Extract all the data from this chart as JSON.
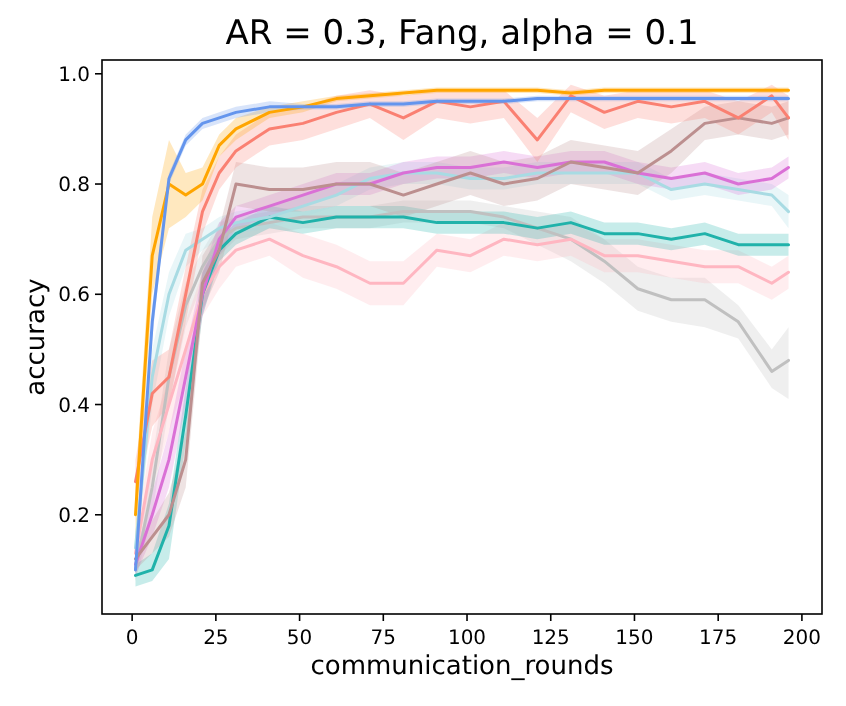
{
  "chart_data": {
    "type": "line",
    "title": "AR = 0.3, Fang, alpha = 0.1",
    "xlabel": "communication_rounds",
    "ylabel": "accuracy",
    "x": [
      1,
      6,
      11,
      16,
      21,
      26,
      31,
      41,
      51,
      61,
      71,
      81,
      91,
      101,
      111,
      121,
      131,
      141,
      151,
      161,
      171,
      181,
      191,
      196
    ],
    "xlim": [
      -9,
      206
    ],
    "xticks": [
      0,
      25,
      50,
      75,
      100,
      125,
      150,
      175,
      200
    ],
    "ylim": [
      0.02,
      1.025
    ],
    "yticks": [
      {
        "value": 0.2,
        "label": "0.2"
      },
      {
        "value": 0.4,
        "label": "0.4"
      },
      {
        "value": 0.6,
        "label": "0.6"
      },
      {
        "value": 0.8,
        "label": "0.8"
      },
      {
        "value": 1,
        "label": "1.0"
      }
    ],
    "grid": false,
    "line_style": "solid",
    "marker": "none",
    "series": [
      {
        "color": "#c0c0c0",
        "values": [
          0.1,
          0.25,
          0.45,
          0.58,
          0.65,
          0.7,
          0.72,
          0.73,
          0.74,
          0.74,
          0.74,
          0.75,
          0.75,
          0.75,
          0.74,
          0.72,
          0.7,
          0.66,
          0.61,
          0.59,
          0.59,
          0.55,
          0.46,
          0.48
        ],
        "lower": [
          0.08,
          0.2,
          0.4,
          0.54,
          0.62,
          0.67,
          0.7,
          0.71,
          0.72,
          0.72,
          0.72,
          0.73,
          0.73,
          0.73,
          0.72,
          0.69,
          0.66,
          0.62,
          0.57,
          0.55,
          0.54,
          0.52,
          0.43,
          0.41
        ],
        "upper": [
          0.12,
          0.3,
          0.5,
          0.62,
          0.68,
          0.73,
          0.74,
          0.75,
          0.76,
          0.76,
          0.76,
          0.77,
          0.77,
          0.77,
          0.76,
          0.75,
          0.74,
          0.7,
          0.65,
          0.63,
          0.63,
          0.58,
          0.5,
          0.54
        ]
      },
      {
        "color": "#ffb6c1",
        "values": [
          0.13,
          0.3,
          0.4,
          0.5,
          0.6,
          0.65,
          0.68,
          0.7,
          0.67,
          0.65,
          0.62,
          0.62,
          0.68,
          0.67,
          0.7,
          0.69,
          0.7,
          0.67,
          0.67,
          0.66,
          0.65,
          0.65,
          0.62,
          0.64
        ],
        "lower": [
          0.1,
          0.25,
          0.35,
          0.45,
          0.56,
          0.61,
          0.65,
          0.67,
          0.63,
          0.61,
          0.58,
          0.58,
          0.65,
          0.64,
          0.67,
          0.66,
          0.67,
          0.64,
          0.64,
          0.63,
          0.62,
          0.62,
          0.59,
          0.61
        ],
        "upper": [
          0.16,
          0.35,
          0.45,
          0.55,
          0.64,
          0.69,
          0.71,
          0.73,
          0.71,
          0.69,
          0.66,
          0.66,
          0.71,
          0.7,
          0.73,
          0.72,
          0.73,
          0.7,
          0.7,
          0.69,
          0.68,
          0.68,
          0.65,
          0.67
        ]
      },
      {
        "color": "#20b2aa",
        "values": [
          0.09,
          0.1,
          0.18,
          0.38,
          0.6,
          0.68,
          0.71,
          0.74,
          0.73,
          0.74,
          0.74,
          0.74,
          0.73,
          0.73,
          0.73,
          0.72,
          0.73,
          0.71,
          0.71,
          0.7,
          0.71,
          0.69,
          0.69,
          0.69
        ],
        "lower": [
          0.07,
          0.08,
          0.12,
          0.33,
          0.56,
          0.66,
          0.69,
          0.72,
          0.71,
          0.72,
          0.72,
          0.72,
          0.71,
          0.71,
          0.71,
          0.7,
          0.71,
          0.69,
          0.69,
          0.68,
          0.69,
          0.67,
          0.67,
          0.67
        ],
        "upper": [
          0.11,
          0.13,
          0.22,
          0.43,
          0.64,
          0.7,
          0.73,
          0.76,
          0.75,
          0.76,
          0.76,
          0.76,
          0.75,
          0.75,
          0.75,
          0.74,
          0.75,
          0.73,
          0.73,
          0.72,
          0.73,
          0.71,
          0.71,
          0.71
        ]
      },
      {
        "color": "#a8dbe3",
        "values": [
          0.14,
          0.45,
          0.6,
          0.68,
          0.7,
          0.72,
          0.73,
          0.74,
          0.76,
          0.78,
          0.81,
          0.82,
          0.82,
          0.81,
          0.81,
          0.82,
          0.82,
          0.82,
          0.82,
          0.79,
          0.8,
          0.79,
          0.78,
          0.75
        ],
        "lower": [
          0.11,
          0.4,
          0.56,
          0.65,
          0.68,
          0.7,
          0.71,
          0.72,
          0.74,
          0.76,
          0.79,
          0.8,
          0.8,
          0.79,
          0.79,
          0.8,
          0.8,
          0.8,
          0.8,
          0.77,
          0.78,
          0.77,
          0.76,
          0.72
        ],
        "upper": [
          0.17,
          0.5,
          0.64,
          0.71,
          0.72,
          0.74,
          0.75,
          0.76,
          0.78,
          0.8,
          0.83,
          0.84,
          0.84,
          0.83,
          0.83,
          0.84,
          0.84,
          0.84,
          0.84,
          0.81,
          0.82,
          0.81,
          0.8,
          0.78
        ]
      },
      {
        "color": "#da70d6",
        "values": [
          0.11,
          0.2,
          0.3,
          0.45,
          0.6,
          0.7,
          0.74,
          0.76,
          0.78,
          0.8,
          0.8,
          0.82,
          0.83,
          0.83,
          0.84,
          0.83,
          0.84,
          0.84,
          0.82,
          0.81,
          0.82,
          0.8,
          0.81,
          0.83
        ],
        "lower": [
          0.09,
          0.16,
          0.25,
          0.4,
          0.56,
          0.67,
          0.72,
          0.74,
          0.76,
          0.78,
          0.78,
          0.8,
          0.81,
          0.81,
          0.82,
          0.81,
          0.82,
          0.82,
          0.8,
          0.79,
          0.8,
          0.78,
          0.79,
          0.81
        ],
        "upper": [
          0.13,
          0.24,
          0.35,
          0.5,
          0.64,
          0.73,
          0.76,
          0.78,
          0.8,
          0.82,
          0.82,
          0.84,
          0.85,
          0.85,
          0.86,
          0.85,
          0.86,
          0.86,
          0.84,
          0.83,
          0.84,
          0.82,
          0.83,
          0.85
        ]
      },
      {
        "color": "#bc8f8f",
        "values": [
          0.12,
          0.16,
          0.2,
          0.3,
          0.62,
          0.68,
          0.8,
          0.79,
          0.79,
          0.8,
          0.8,
          0.78,
          0.8,
          0.82,
          0.8,
          0.81,
          0.84,
          0.83,
          0.82,
          0.86,
          0.91,
          0.92,
          0.91,
          0.92
        ],
        "lower": [
          0.1,
          0.13,
          0.16,
          0.25,
          0.57,
          0.64,
          0.76,
          0.75,
          0.75,
          0.76,
          0.76,
          0.74,
          0.76,
          0.78,
          0.76,
          0.77,
          0.8,
          0.79,
          0.78,
          0.82,
          0.88,
          0.89,
          0.88,
          0.89
        ],
        "upper": [
          0.14,
          0.19,
          0.24,
          0.35,
          0.67,
          0.72,
          0.84,
          0.83,
          0.83,
          0.84,
          0.84,
          0.82,
          0.84,
          0.86,
          0.84,
          0.85,
          0.88,
          0.87,
          0.86,
          0.9,
          0.94,
          0.95,
          0.94,
          0.95
        ]
      },
      {
        "color": "#fa8072",
        "values": [
          0.26,
          0.42,
          0.45,
          0.6,
          0.75,
          0.82,
          0.86,
          0.9,
          0.91,
          0.93,
          0.945,
          0.92,
          0.95,
          0.94,
          0.95,
          0.88,
          0.96,
          0.93,
          0.95,
          0.94,
          0.95,
          0.92,
          0.96,
          0.92
        ],
        "lower": [
          0.22,
          0.36,
          0.4,
          0.55,
          0.71,
          0.79,
          0.83,
          0.87,
          0.88,
          0.9,
          0.92,
          0.88,
          0.92,
          0.91,
          0.92,
          0.84,
          0.93,
          0.9,
          0.92,
          0.91,
          0.92,
          0.89,
          0.93,
          0.88
        ],
        "upper": [
          0.3,
          0.48,
          0.5,
          0.65,
          0.79,
          0.85,
          0.89,
          0.93,
          0.94,
          0.96,
          0.97,
          0.96,
          0.97,
          0.97,
          0.97,
          0.92,
          0.98,
          0.96,
          0.97,
          0.97,
          0.97,
          0.95,
          0.98,
          0.96
        ]
      },
      {
        "color": "#ffa500",
        "values": [
          0.2,
          0.67,
          0.8,
          0.78,
          0.8,
          0.87,
          0.9,
          0.93,
          0.94,
          0.955,
          0.96,
          0.965,
          0.97,
          0.97,
          0.97,
          0.97,
          0.965,
          0.97,
          0.97,
          0.97,
          0.97,
          0.97,
          0.97,
          0.97
        ],
        "lower": [
          0.15,
          0.6,
          0.72,
          0.74,
          0.77,
          0.85,
          0.88,
          0.92,
          0.93,
          0.95,
          0.955,
          0.96,
          0.965,
          0.965,
          0.965,
          0.965,
          0.96,
          0.965,
          0.965,
          0.965,
          0.965,
          0.965,
          0.965,
          0.965
        ],
        "upper": [
          0.25,
          0.74,
          0.88,
          0.82,
          0.83,
          0.89,
          0.92,
          0.94,
          0.95,
          0.96,
          0.965,
          0.97,
          0.975,
          0.975,
          0.975,
          0.975,
          0.97,
          0.975,
          0.975,
          0.975,
          0.975,
          0.975,
          0.975,
          0.975
        ]
      },
      {
        "color": "#6495ed",
        "values": [
          0.1,
          0.55,
          0.81,
          0.88,
          0.91,
          0.92,
          0.93,
          0.94,
          0.94,
          0.94,
          0.945,
          0.945,
          0.95,
          0.95,
          0.95,
          0.955,
          0.955,
          0.955,
          0.955,
          0.955,
          0.955,
          0.955,
          0.955,
          0.955
        ],
        "lower": [
          0.09,
          0.52,
          0.8,
          0.87,
          0.9,
          0.91,
          0.92,
          0.93,
          0.935,
          0.935,
          0.94,
          0.94,
          0.945,
          0.945,
          0.945,
          0.95,
          0.95,
          0.95,
          0.95,
          0.95,
          0.95,
          0.95,
          0.95,
          0.95
        ],
        "upper": [
          0.11,
          0.58,
          0.82,
          0.89,
          0.92,
          0.93,
          0.94,
          0.95,
          0.945,
          0.945,
          0.95,
          0.95,
          0.955,
          0.955,
          0.955,
          0.96,
          0.96,
          0.96,
          0.96,
          0.96,
          0.96,
          0.96,
          0.96,
          0.96
        ]
      }
    ]
  }
}
